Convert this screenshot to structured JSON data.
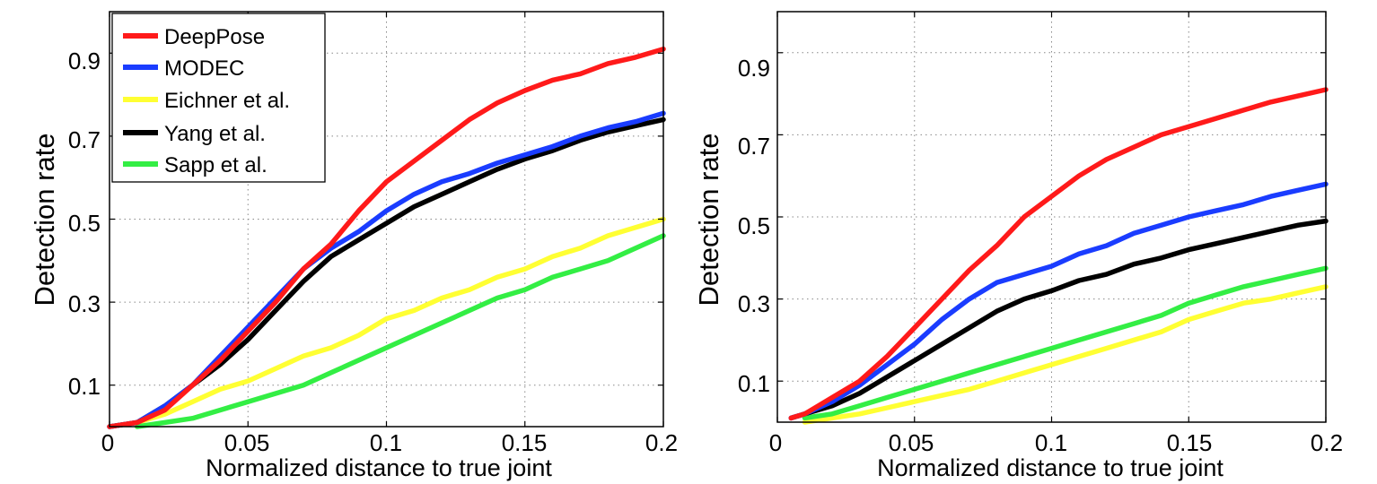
{
  "chart_data": [
    {
      "type": "line",
      "title": "",
      "xlabel": "Normalized distance to true joint",
      "ylabel": "Detection rate",
      "xlim": [
        0,
        0.2
      ],
      "ylim": [
        0,
        1
      ],
      "xticks": [
        "0",
        "0.05",
        "0.1",
        "0.15",
        "0.2"
      ],
      "yticks": [
        "0.1",
        "0.3",
        "0.5",
        "0.7",
        "0.9"
      ],
      "grid": true,
      "legend_position": "top-left",
      "series": [
        {
          "name": "DeepPose",
          "color": "#ff1a1a",
          "x": [
            0,
            0.01,
            0.02,
            0.03,
            0.04,
            0.05,
            0.06,
            0.07,
            0.08,
            0.09,
            0.1,
            0.11,
            0.12,
            0.13,
            0.14,
            0.15,
            0.16,
            0.17,
            0.18,
            0.19,
            0.2
          ],
          "y": [
            0,
            0.01,
            0.04,
            0.1,
            0.16,
            0.23,
            0.3,
            0.38,
            0.44,
            0.52,
            0.59,
            0.64,
            0.69,
            0.74,
            0.78,
            0.81,
            0.835,
            0.85,
            0.875,
            0.89,
            0.91
          ]
        },
        {
          "name": "MODEC",
          "color": "#1a3cff",
          "x": [
            0,
            0.01,
            0.02,
            0.03,
            0.04,
            0.05,
            0.06,
            0.07,
            0.08,
            0.09,
            0.1,
            0.11,
            0.12,
            0.13,
            0.14,
            0.15,
            0.16,
            0.17,
            0.18,
            0.19,
            0.2
          ],
          "y": [
            0,
            0.01,
            0.05,
            0.1,
            0.17,
            0.24,
            0.31,
            0.38,
            0.43,
            0.47,
            0.52,
            0.56,
            0.59,
            0.61,
            0.635,
            0.655,
            0.675,
            0.7,
            0.72,
            0.735,
            0.755
          ]
        },
        {
          "name": "Eichner et al.",
          "color": "#ffff33",
          "x": [
            0.01,
            0.02,
            0.03,
            0.04,
            0.05,
            0.06,
            0.07,
            0.08,
            0.09,
            0.1,
            0.11,
            0.12,
            0.13,
            0.14,
            0.15,
            0.16,
            0.17,
            0.18,
            0.19,
            0.2
          ],
          "y": [
            0.01,
            0.03,
            0.06,
            0.09,
            0.11,
            0.14,
            0.17,
            0.19,
            0.22,
            0.26,
            0.28,
            0.31,
            0.33,
            0.36,
            0.38,
            0.41,
            0.43,
            0.46,
            0.48,
            0.5
          ]
        },
        {
          "name": "Yang et al.",
          "color": "#000000",
          "x": [
            0,
            0.01,
            0.02,
            0.03,
            0.04,
            0.05,
            0.06,
            0.07,
            0.08,
            0.09,
            0.1,
            0.11,
            0.12,
            0.13,
            0.14,
            0.15,
            0.16,
            0.17,
            0.18,
            0.19,
            0.2
          ],
          "y": [
            0,
            0.01,
            0.05,
            0.1,
            0.15,
            0.21,
            0.28,
            0.35,
            0.41,
            0.45,
            0.49,
            0.53,
            0.56,
            0.59,
            0.62,
            0.645,
            0.665,
            0.69,
            0.71,
            0.725,
            0.74
          ]
        },
        {
          "name": "Sapp et al.",
          "color": "#33ee44",
          "x": [
            0.01,
            0.02,
            0.03,
            0.04,
            0.05,
            0.06,
            0.07,
            0.08,
            0.09,
            0.1,
            0.11,
            0.12,
            0.13,
            0.14,
            0.15,
            0.16,
            0.17,
            0.18,
            0.19,
            0.2
          ],
          "y": [
            0,
            0.01,
            0.02,
            0.04,
            0.06,
            0.08,
            0.1,
            0.13,
            0.16,
            0.19,
            0.22,
            0.25,
            0.28,
            0.31,
            0.33,
            0.36,
            0.38,
            0.4,
            0.43,
            0.46
          ]
        }
      ]
    },
    {
      "type": "line",
      "title": "",
      "xlabel": "Normalized distance to true joint",
      "ylabel": "Detection rate",
      "xlim": [
        0,
        0.2
      ],
      "ylim": [
        0,
        1
      ],
      "xticks": [
        "0",
        "0.05",
        "0.1",
        "0.15",
        "0.2"
      ],
      "yticks": [
        "0.1",
        "0.3",
        "0.5",
        "0.7",
        "0.9"
      ],
      "grid": true,
      "series": [
        {
          "name": "DeepPose",
          "color": "#ff1a1a",
          "x": [
            0.005,
            0.01,
            0.02,
            0.03,
            0.04,
            0.05,
            0.06,
            0.07,
            0.08,
            0.09,
            0.1,
            0.11,
            0.12,
            0.13,
            0.14,
            0.15,
            0.16,
            0.17,
            0.18,
            0.19,
            0.2
          ],
          "y": [
            0.01,
            0.02,
            0.06,
            0.1,
            0.16,
            0.23,
            0.3,
            0.37,
            0.43,
            0.5,
            0.55,
            0.6,
            0.64,
            0.67,
            0.7,
            0.72,
            0.74,
            0.76,
            0.78,
            0.795,
            0.81
          ]
        },
        {
          "name": "MODEC",
          "color": "#1a3cff",
          "x": [
            0.005,
            0.01,
            0.02,
            0.03,
            0.04,
            0.05,
            0.06,
            0.07,
            0.08,
            0.09,
            0.1,
            0.11,
            0.12,
            0.13,
            0.14,
            0.15,
            0.16,
            0.17,
            0.18,
            0.19,
            0.2
          ],
          "y": [
            0.01,
            0.02,
            0.05,
            0.09,
            0.14,
            0.19,
            0.25,
            0.3,
            0.34,
            0.36,
            0.38,
            0.41,
            0.43,
            0.46,
            0.48,
            0.5,
            0.515,
            0.53,
            0.55,
            0.565,
            0.58
          ]
        },
        {
          "name": "Eichner et al.",
          "color": "#ffff33",
          "x": [
            0.01,
            0.02,
            0.03,
            0.04,
            0.05,
            0.06,
            0.07,
            0.08,
            0.09,
            0.1,
            0.11,
            0.12,
            0.13,
            0.14,
            0.15,
            0.16,
            0.17,
            0.18,
            0.19,
            0.2
          ],
          "y": [
            0,
            0.01,
            0.02,
            0.035,
            0.05,
            0.065,
            0.08,
            0.1,
            0.12,
            0.14,
            0.16,
            0.18,
            0.2,
            0.22,
            0.25,
            0.27,
            0.29,
            0.3,
            0.315,
            0.33
          ]
        },
        {
          "name": "Yang et al.",
          "color": "#000000",
          "x": [
            0.005,
            0.01,
            0.02,
            0.03,
            0.04,
            0.05,
            0.06,
            0.07,
            0.08,
            0.09,
            0.1,
            0.11,
            0.12,
            0.13,
            0.14,
            0.15,
            0.16,
            0.17,
            0.18,
            0.19,
            0.2
          ],
          "y": [
            0.01,
            0.02,
            0.04,
            0.07,
            0.11,
            0.15,
            0.19,
            0.23,
            0.27,
            0.3,
            0.32,
            0.345,
            0.36,
            0.385,
            0.4,
            0.42,
            0.435,
            0.45,
            0.465,
            0.48,
            0.49
          ]
        },
        {
          "name": "Sapp et al.",
          "color": "#33ee44",
          "x": [
            0.01,
            0.02,
            0.03,
            0.04,
            0.05,
            0.06,
            0.07,
            0.08,
            0.09,
            0.1,
            0.11,
            0.12,
            0.13,
            0.14,
            0.15,
            0.16,
            0.17,
            0.18,
            0.19,
            0.2
          ],
          "y": [
            0.01,
            0.02,
            0.04,
            0.06,
            0.08,
            0.1,
            0.12,
            0.14,
            0.16,
            0.18,
            0.2,
            0.22,
            0.24,
            0.26,
            0.29,
            0.31,
            0.33,
            0.345,
            0.36,
            0.375
          ]
        }
      ]
    }
  ]
}
